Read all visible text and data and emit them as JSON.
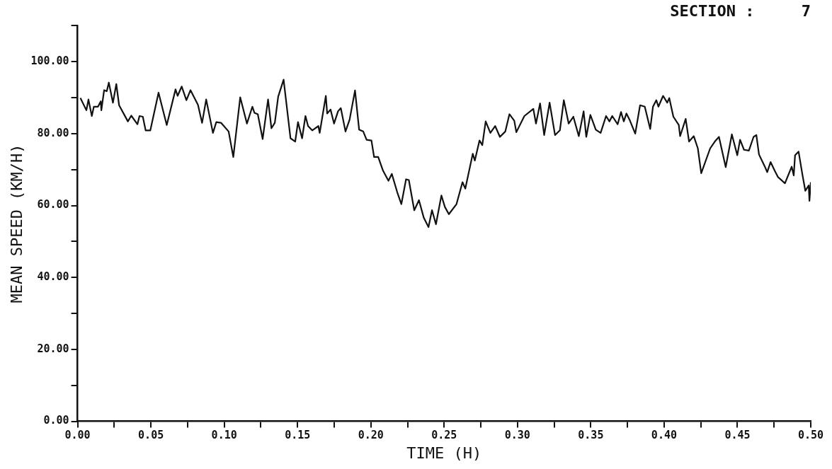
{
  "chart_data": {
    "type": "line",
    "title": "SECTION :     7",
    "xlabel": "TIME (H)",
    "ylabel": "MEAN SPEED (KM/H)",
    "x": [
      0.0019,
      0.006,
      0.0074,
      0.0097,
      0.0111,
      0.0139,
      0.0158,
      0.0162,
      0.0181,
      0.0199,
      0.0213,
      0.0241,
      0.0264,
      0.0283,
      0.0343,
      0.0366,
      0.0408,
      0.0422,
      0.0445,
      0.0464,
      0.0496,
      0.0552,
      0.0608,
      0.0668,
      0.0682,
      0.071,
      0.0742,
      0.077,
      0.0821,
      0.0849,
      0.0877,
      0.0923,
      0.0946,
      0.0979,
      0.103,
      0.1062,
      0.1109,
      0.1155,
      0.1192,
      0.1206,
      0.1229,
      0.1262,
      0.1299,
      0.1322,
      0.1345,
      0.1368,
      0.1405,
      0.1452,
      0.1484,
      0.1503,
      0.1531,
      0.1554,
      0.1572,
      0.16,
      0.1642,
      0.1651,
      0.1693,
      0.1702,
      0.1725,
      0.1749,
      0.1776,
      0.1795,
      0.1827,
      0.1855,
      0.1892,
      0.192,
      0.1948,
      0.1971,
      0.2004,
      0.2022,
      0.205,
      0.2083,
      0.212,
      0.2143,
      0.218,
      0.2208,
      0.224,
      0.2259,
      0.2296,
      0.2328,
      0.2361,
      0.2393,
      0.2417,
      0.2444,
      0.2481,
      0.2505,
      0.2532,
      0.2584,
      0.2625,
      0.2644,
      0.2695,
      0.2709,
      0.2741,
      0.276,
      0.2783,
      0.2815,
      0.2848,
      0.288,
      0.2917,
      0.2945,
      0.2978,
      0.2992,
      0.3047,
      0.3108,
      0.3126,
      0.3154,
      0.3182,
      0.3219,
      0.3256,
      0.3289,
      0.3316,
      0.3349,
      0.3381,
      0.3418,
      0.3451,
      0.3469,
      0.3497,
      0.3534,
      0.3567,
      0.3604,
      0.3627,
      0.3646,
      0.3683,
      0.3706,
      0.3725,
      0.3743,
      0.3766,
      0.3803,
      0.3836,
      0.3868,
      0.3905,
      0.3924,
      0.3947,
      0.3961,
      0.3993,
      0.4021,
      0.4035,
      0.4063,
      0.41,
      0.4109,
      0.4147,
      0.417,
      0.4202,
      0.423,
      0.4253,
      0.4314,
      0.4346,
      0.4374,
      0.442,
      0.4462,
      0.4499,
      0.4518,
      0.4545,
      0.4578,
      0.461,
      0.4629,
      0.4647,
      0.4685,
      0.4703,
      0.4726,
      0.4754,
      0.4777,
      0.4824,
      0.487,
      0.4884,
      0.4893,
      0.4917,
      0.4944,
      0.4963,
      0.4986,
      0.4991,
      0.5
    ],
    "series": [
      {
        "color": "#111111",
        "values": [
          89.9,
          86.5,
          89.5,
          84.9,
          87.5,
          87.5,
          89.0,
          86.5,
          92.1,
          91.8,
          94.2,
          88.6,
          93.8,
          87.9,
          83.4,
          85.0,
          82.6,
          84.9,
          84.7,
          80.9,
          80.9,
          91.4,
          82.4,
          92.3,
          90.5,
          93.1,
          89.3,
          92.1,
          88.0,
          83.0,
          89.5,
          80.2,
          83.2,
          83.0,
          80.6,
          73.5,
          90.1,
          82.8,
          87.5,
          85.8,
          85.4,
          78.5,
          89.5,
          81.5,
          83.0,
          90.3,
          95.0,
          78.7,
          77.8,
          83.2,
          78.7,
          84.9,
          82.1,
          80.9,
          82.1,
          80.2,
          90.5,
          85.6,
          86.7,
          82.8,
          86.2,
          87.1,
          80.6,
          83.9,
          92.0,
          81.1,
          80.6,
          78.3,
          78.1,
          73.5,
          73.5,
          69.7,
          66.9,
          68.8,
          63.7,
          60.4,
          67.3,
          67.1,
          58.7,
          61.5,
          56.6,
          54.0,
          58.7,
          54.8,
          62.8,
          59.6,
          57.6,
          60.4,
          66.5,
          64.7,
          74.4,
          72.5,
          78.1,
          76.8,
          83.4,
          80.2,
          82.1,
          79.1,
          80.6,
          85.4,
          83.6,
          80.4,
          84.9,
          86.9,
          82.8,
          88.4,
          79.6,
          88.6,
          79.6,
          80.9,
          89.3,
          82.8,
          84.7,
          79.3,
          86.2,
          79.1,
          85.2,
          81.1,
          80.2,
          84.9,
          83.4,
          84.9,
          82.6,
          86.0,
          83.4,
          85.6,
          83.7,
          80.0,
          87.9,
          87.5,
          81.3,
          87.5,
          89.3,
          87.5,
          90.5,
          88.6,
          89.9,
          84.7,
          82.4,
          79.3,
          84.1,
          77.8,
          79.3,
          75.9,
          69.0,
          75.9,
          77.8,
          79.1,
          70.7,
          79.8,
          74.0,
          78.3,
          75.5,
          75.3,
          79.1,
          79.6,
          74.2,
          71.0,
          69.3,
          72.1,
          69.7,
          67.9,
          66.2,
          70.8,
          68.4,
          74.0,
          75.0,
          68.4,
          64.1,
          65.6,
          61.3,
          66.5
        ]
      }
    ],
    "xlim": [
      0,
      0.5
    ],
    "xticks": [
      {
        "value": 0,
        "label": "0.00"
      },
      {
        "value": 0.025,
        "label": null
      },
      {
        "value": 0.05,
        "label": "0.05"
      },
      {
        "value": 0.075,
        "label": null
      },
      {
        "value": 0.1,
        "label": "0.10"
      },
      {
        "value": 0.125,
        "label": null
      },
      {
        "value": 0.15,
        "label": "0.15"
      },
      {
        "value": 0.175,
        "label": null
      },
      {
        "value": 0.2,
        "label": "0.20"
      },
      {
        "value": 0.225,
        "label": null
      },
      {
        "value": 0.25,
        "label": "0.25"
      },
      {
        "value": 0.275,
        "label": null
      },
      {
        "value": 0.3,
        "label": "0.30"
      },
      {
        "value": 0.325,
        "label": null
      },
      {
        "value": 0.35,
        "label": "0.35"
      },
      {
        "value": 0.375,
        "label": null
      },
      {
        "value": 0.4,
        "label": "0.40"
      },
      {
        "value": 0.425,
        "label": null
      },
      {
        "value": 0.45,
        "label": "0.45"
      },
      {
        "value": 0.475,
        "label": null
      },
      {
        "value": 0.5,
        "label": "0.50"
      }
    ],
    "ylim": [
      0,
      110
    ],
    "yticks": [
      {
        "value": 0,
        "label": "0.00"
      },
      {
        "value": 10,
        "label": null
      },
      {
        "value": 20,
        "label": "20.00"
      },
      {
        "value": 30,
        "label": null
      },
      {
        "value": 40,
        "label": "40.00"
      },
      {
        "value": 50,
        "label": null
      },
      {
        "value": 60,
        "label": "60.00"
      },
      {
        "value": 70,
        "label": null
      },
      {
        "value": 80,
        "label": "80.00"
      },
      {
        "value": 90,
        "label": null
      },
      {
        "value": 100,
        "label": "100.00"
      },
      {
        "value": 110,
        "label": null
      }
    ],
    "grid": false,
    "legend": false,
    "marker": "none",
    "line_style": "solid"
  }
}
